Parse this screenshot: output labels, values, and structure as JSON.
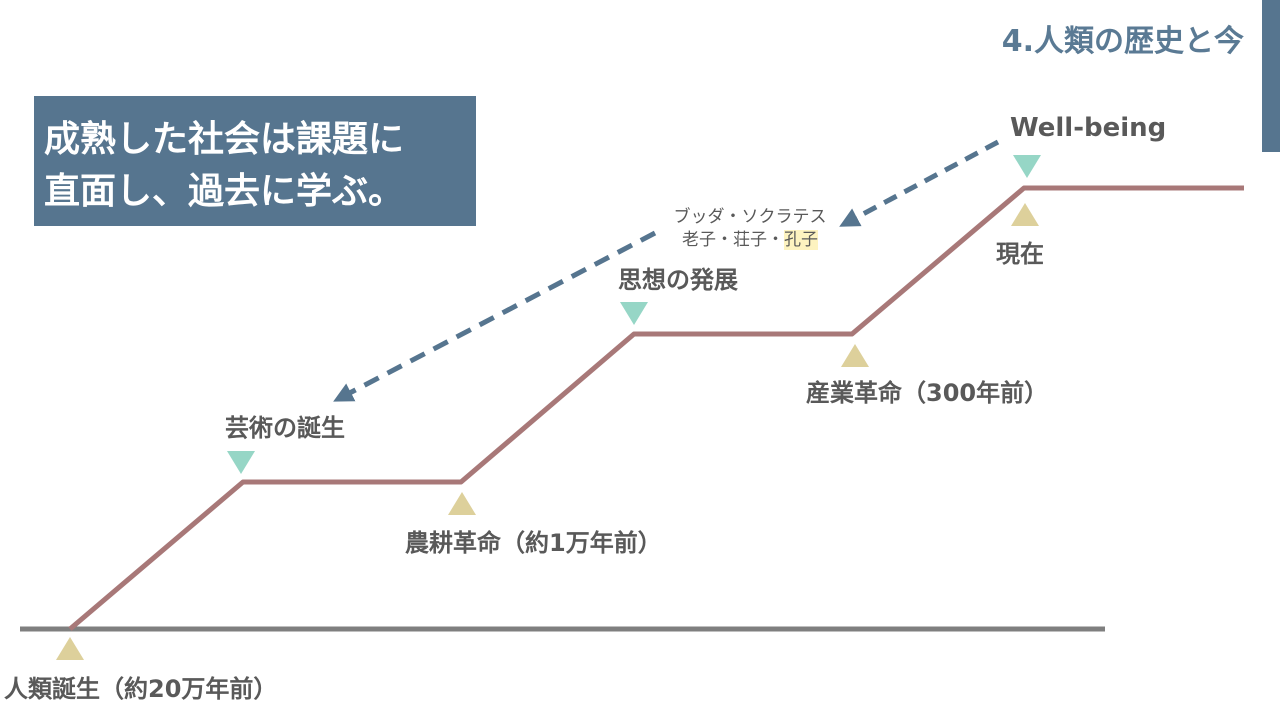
{
  "section_title": "4.人類の歴史と今",
  "headline": {
    "line1": "成熟した社会は課題に",
    "line2": "直面し、過去に学ぶ。"
  },
  "milestones": {
    "human_birth": "人類誕生（約20万年前）",
    "art": "芸術の誕生",
    "agriculture": "農耕革命（約1万年前）",
    "thought": "思想の発展",
    "industry": "産業革命（300年前）",
    "present": "現在",
    "wellbeing": "Well-being"
  },
  "thinkers": {
    "line1": "ブッダ・ソクラテス",
    "line2_prefix": "老子・荘子・",
    "line2_highlight": "孔子"
  },
  "colors": {
    "accent": "#56758f",
    "path_line": "#a87878",
    "baseline": "#7f7f7f",
    "marker_up": "#ddd09b",
    "marker_down": "#96d6c6",
    "dashed_arrow": "#56758f"
  }
}
